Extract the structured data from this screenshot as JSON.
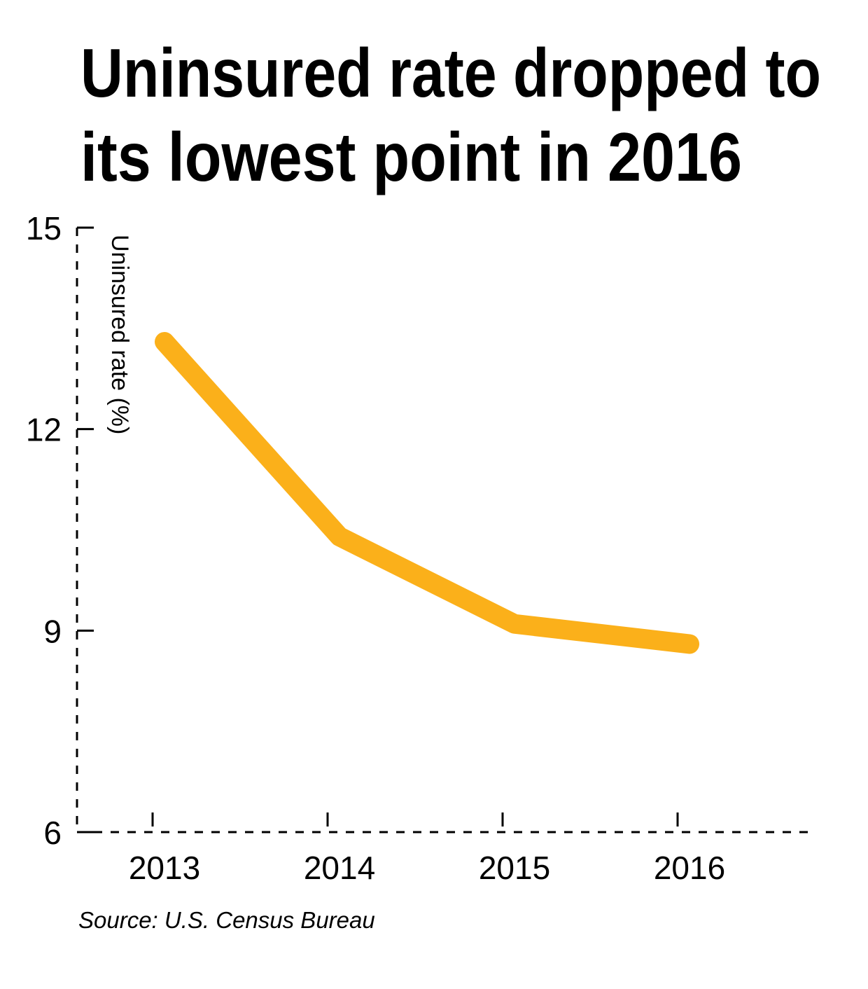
{
  "chart_data": {
    "type": "line",
    "title_lines": [
      "Uninsured rate dropped to",
      "its lowest point in 2016"
    ],
    "xlabel": "",
    "ylabel": "Uninsured rate (%)",
    "categories": [
      "2013",
      "2014",
      "2015",
      "2016"
    ],
    "values": [
      13.3,
      10.4,
      9.1,
      8.8
    ],
    "ylim": [
      6,
      15
    ],
    "yticks": [
      "15",
      "12",
      "9",
      "6"
    ],
    "grid": false,
    "line_color": "#FBB01A",
    "source": "Source: U.S. Census Bureau"
  }
}
